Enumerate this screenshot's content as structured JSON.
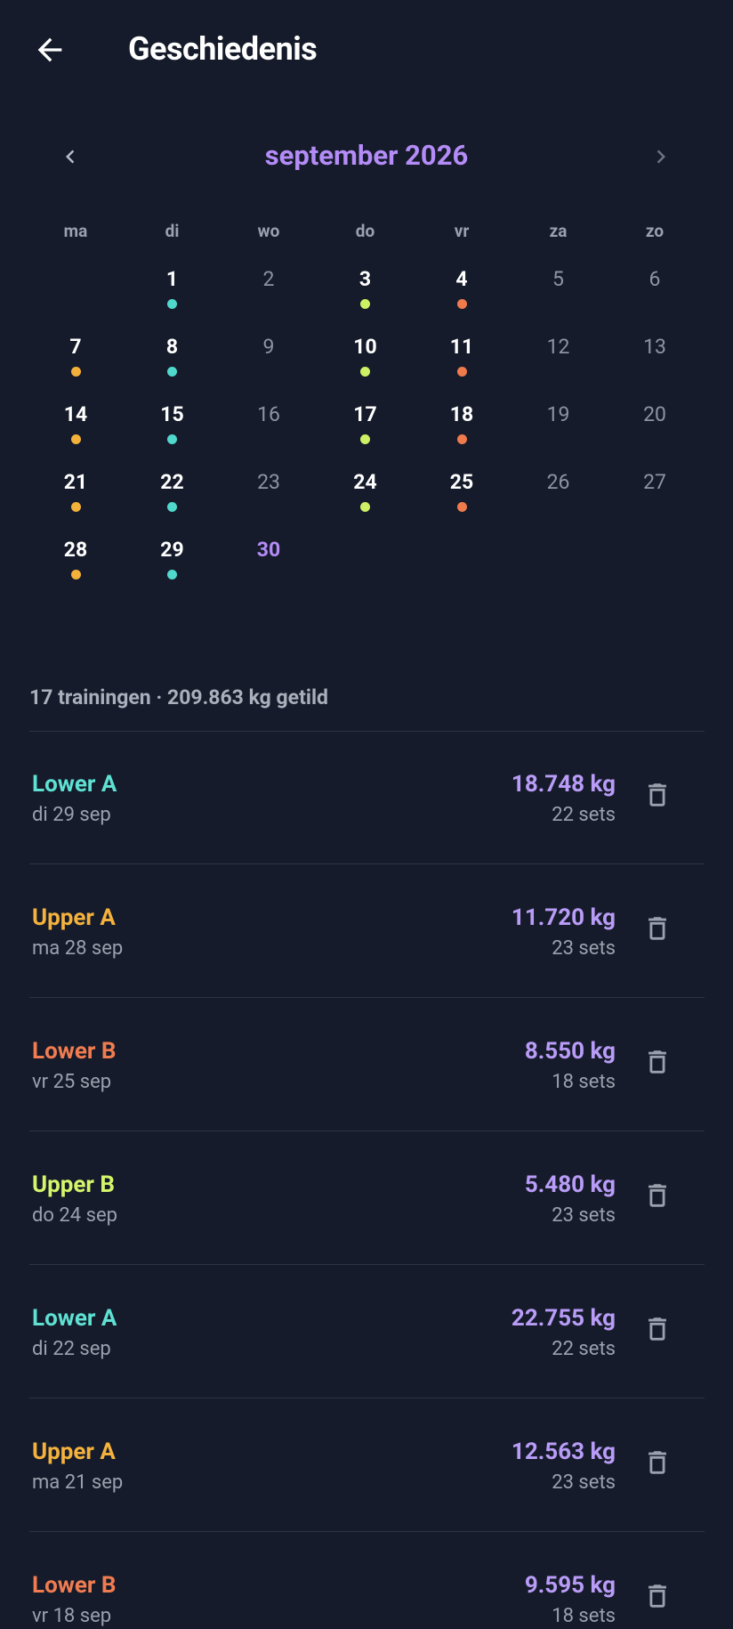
{
  "header": {
    "title": "Geschiedenis"
  },
  "calendar": {
    "month": "september 2026",
    "weekdays": [
      "ma",
      "di",
      "wo",
      "do",
      "vr",
      "za",
      "zo"
    ],
    "weeks": [
      [
        null,
        {
          "label": "1",
          "dot": "#4fd8cb"
        },
        {
          "label": "2"
        },
        {
          "label": "3",
          "dot": "#cdf064"
        },
        {
          "label": "4",
          "dot": "#ef7b4c"
        },
        {
          "label": "5"
        },
        {
          "label": "6"
        }
      ],
      [
        {
          "label": "7",
          "dot": "#f3b13a"
        },
        {
          "label": "8",
          "dot": "#4fd8cb"
        },
        {
          "label": "9"
        },
        {
          "label": "10",
          "dot": "#cdf064"
        },
        {
          "label": "11",
          "dot": "#ef7b4c"
        },
        {
          "label": "12"
        },
        {
          "label": "13"
        }
      ],
      [
        {
          "label": "14",
          "dot": "#f3b13a"
        },
        {
          "label": "15",
          "dot": "#4fd8cb"
        },
        {
          "label": "16"
        },
        {
          "label": "17",
          "dot": "#cdf064"
        },
        {
          "label": "18",
          "dot": "#ef7b4c"
        },
        {
          "label": "19"
        },
        {
          "label": "20"
        }
      ],
      [
        {
          "label": "21",
          "dot": "#f3b13a"
        },
        {
          "label": "22",
          "dot": "#4fd8cb"
        },
        {
          "label": "23"
        },
        {
          "label": "24",
          "dot": "#cdf064"
        },
        {
          "label": "25",
          "dot": "#ef7b4c"
        },
        {
          "label": "26"
        },
        {
          "label": "27"
        }
      ],
      [
        {
          "label": "28",
          "dot": "#f3b13a"
        },
        {
          "label": "29",
          "dot": "#4fd8cb"
        },
        {
          "label": "30",
          "today": true
        }
      ]
    ]
  },
  "summary": "17 trainingen · 209.863 kg getild",
  "workouts": [
    {
      "name": "Lower A",
      "color": "#5ee0d2",
      "date": "di 29 sep",
      "weight": "18.748 kg",
      "sets": "22 sets"
    },
    {
      "name": "Upper A",
      "color": "#f4b23d",
      "date": "ma 28 sep",
      "weight": "11.720 kg",
      "sets": "23 sets"
    },
    {
      "name": "Lower B",
      "color": "#f07c50",
      "date": "vr 25 sep",
      "weight": "8.550 kg",
      "sets": "18 sets"
    },
    {
      "name": "Upper B",
      "color": "#d4f56a",
      "date": "do 24 sep",
      "weight": "5.480 kg",
      "sets": "23 sets"
    },
    {
      "name": "Lower A",
      "color": "#5ee0d2",
      "date": "di 22 sep",
      "weight": "22.755 kg",
      "sets": "22 sets"
    },
    {
      "name": "Upper A",
      "color": "#f4b23d",
      "date": "ma 21 sep",
      "weight": "12.563 kg",
      "sets": "23 sets"
    },
    {
      "name": "Lower B",
      "color": "#f07c50",
      "date": "vr 18 sep",
      "weight": "9.595 kg",
      "sets": "18 sets"
    }
  ]
}
